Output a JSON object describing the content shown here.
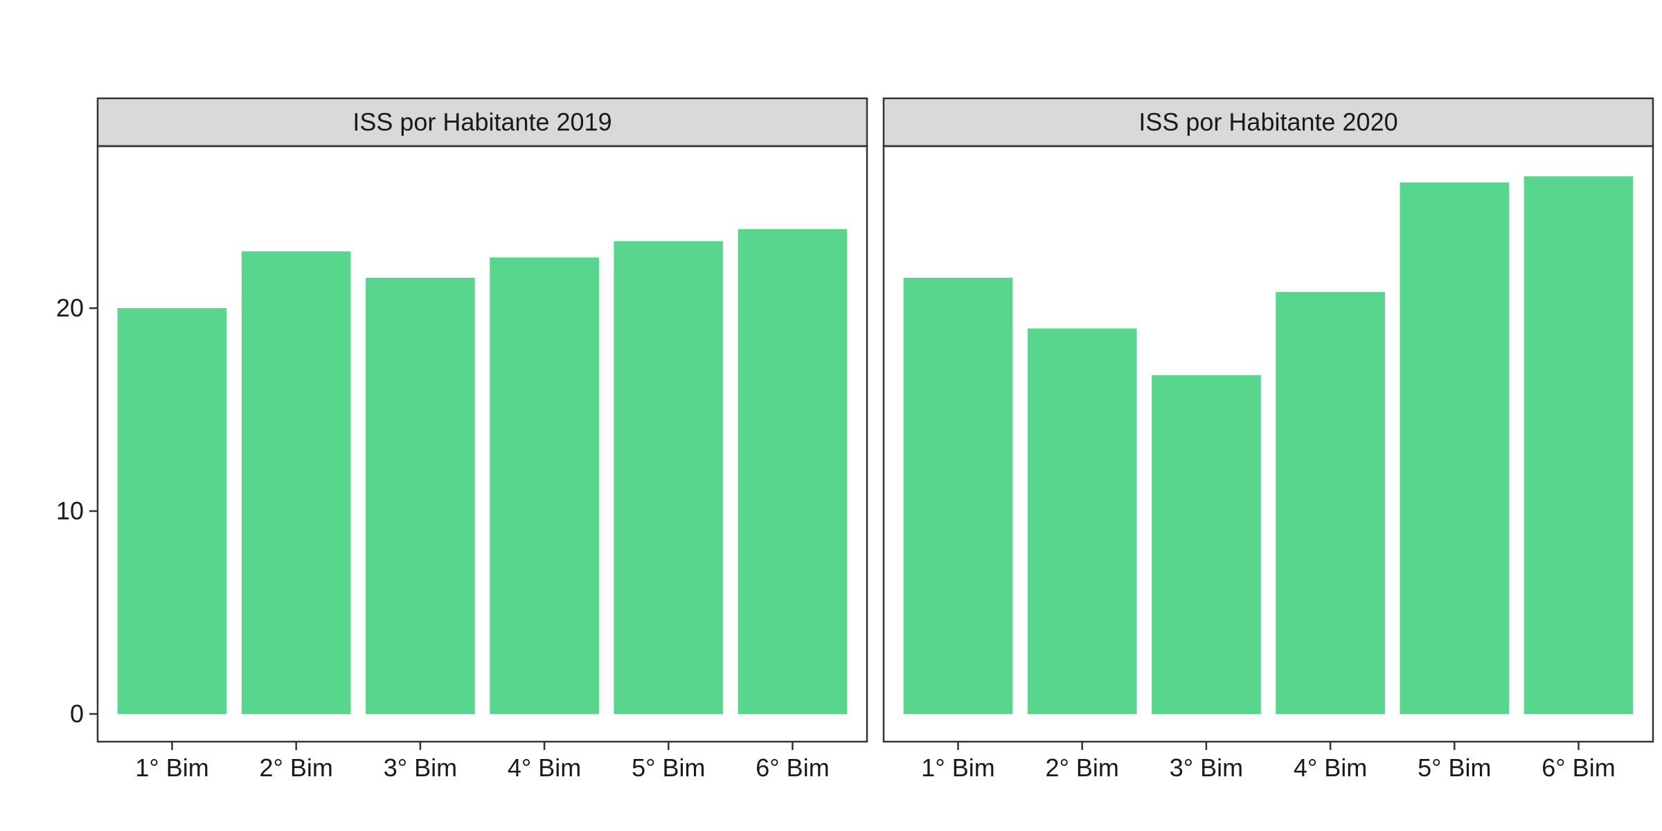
{
  "chart_data": {
    "type": "bar",
    "bar_color": "#58D68D",
    "strip_color": "#D9D9D9",
    "panel_border_color": "#333333",
    "grid": false,
    "ylim": [
      0,
      28
    ],
    "yticks": [
      0,
      10,
      20
    ],
    "ytick_labels": [
      "0",
      "10",
      "20"
    ],
    "categories": [
      "1° Bim",
      "2° Bim",
      "3° Bim",
      "4° Bim",
      "5° Bim",
      "6° Bim"
    ],
    "panels": [
      {
        "title": "ISS por Habitante 2019",
        "values": [
          20.0,
          22.8,
          21.5,
          22.5,
          23.3,
          23.9
        ]
      },
      {
        "title": "ISS por Habitante 2020",
        "values": [
          21.5,
          19.0,
          16.7,
          20.8,
          26.2,
          26.5
        ]
      }
    ]
  }
}
